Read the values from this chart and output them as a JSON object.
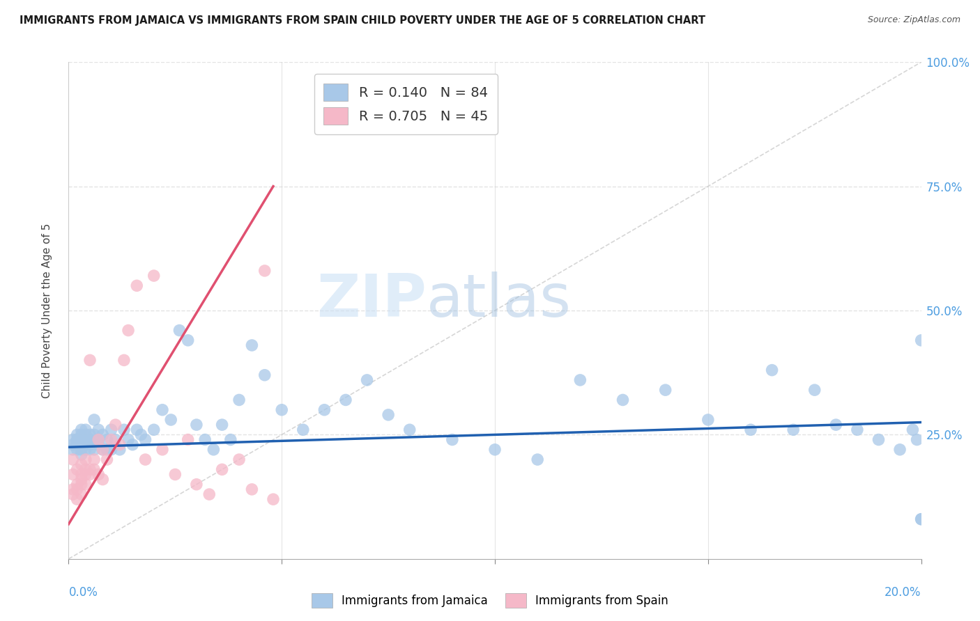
{
  "title": "IMMIGRANTS FROM JAMAICA VS IMMIGRANTS FROM SPAIN CHILD POVERTY UNDER THE AGE OF 5 CORRELATION CHART",
  "source": "Source: ZipAtlas.com",
  "ylabel": "Child Poverty Under the Age of 5",
  "ylabel_right_ticks": [
    "100.0%",
    "75.0%",
    "50.0%",
    "25.0%"
  ],
  "ylabel_right_vals": [
    1.0,
    0.75,
    0.5,
    0.25
  ],
  "r_jamaica": 0.14,
  "n_jamaica": 84,
  "r_spain": 0.705,
  "n_spain": 45,
  "jamaica_color": "#a8c8e8",
  "spain_color": "#f5b8c8",
  "jamaica_line_color": "#2060b0",
  "spain_line_color": "#e05070",
  "diag_line_color": "#cccccc",
  "xmin": 0.0,
  "xmax": 0.2,
  "ymin": 0.0,
  "ymax": 1.0,
  "watermark_zip": "ZIP",
  "watermark_atlas": "atlas",
  "background_color": "#ffffff",
  "grid_color": "#e0e0e0",
  "axis_tick_color": "#4d9de0",
  "jamaica_x": [
    0.001,
    0.001,
    0.001,
    0.002,
    0.002,
    0.002,
    0.002,
    0.002,
    0.003,
    0.003,
    0.003,
    0.003,
    0.003,
    0.003,
    0.004,
    0.004,
    0.004,
    0.004,
    0.004,
    0.005,
    0.005,
    0.005,
    0.005,
    0.005,
    0.006,
    0.006,
    0.006,
    0.007,
    0.007,
    0.007,
    0.008,
    0.008,
    0.009,
    0.009,
    0.01,
    0.01,
    0.011,
    0.012,
    0.013,
    0.014,
    0.015,
    0.016,
    0.017,
    0.018,
    0.02,
    0.022,
    0.024,
    0.026,
    0.028,
    0.03,
    0.032,
    0.034,
    0.036,
    0.038,
    0.04,
    0.043,
    0.046,
    0.05,
    0.055,
    0.06,
    0.065,
    0.07,
    0.075,
    0.08,
    0.09,
    0.1,
    0.11,
    0.12,
    0.13,
    0.14,
    0.15,
    0.16,
    0.165,
    0.17,
    0.175,
    0.18,
    0.185,
    0.19,
    0.195,
    0.198,
    0.199,
    0.2,
    0.2,
    0.2
  ],
  "jamaica_y": [
    0.22,
    0.24,
    0.23,
    0.24,
    0.23,
    0.25,
    0.22,
    0.24,
    0.23,
    0.22,
    0.25,
    0.21,
    0.26,
    0.24,
    0.24,
    0.23,
    0.26,
    0.22,
    0.25,
    0.24,
    0.23,
    0.25,
    0.22,
    0.24,
    0.25,
    0.22,
    0.28,
    0.24,
    0.23,
    0.26,
    0.22,
    0.25,
    0.24,
    0.22,
    0.26,
    0.22,
    0.24,
    0.22,
    0.26,
    0.24,
    0.23,
    0.26,
    0.25,
    0.24,
    0.26,
    0.3,
    0.28,
    0.46,
    0.44,
    0.27,
    0.24,
    0.22,
    0.27,
    0.24,
    0.32,
    0.43,
    0.37,
    0.3,
    0.26,
    0.3,
    0.32,
    0.36,
    0.29,
    0.26,
    0.24,
    0.22,
    0.2,
    0.36,
    0.32,
    0.34,
    0.28,
    0.26,
    0.38,
    0.26,
    0.34,
    0.27,
    0.26,
    0.24,
    0.22,
    0.26,
    0.24,
    0.44,
    0.08,
    0.08
  ],
  "spain_x": [
    0.001,
    0.001,
    0.001,
    0.001,
    0.002,
    0.002,
    0.002,
    0.002,
    0.003,
    0.003,
    0.003,
    0.003,
    0.003,
    0.004,
    0.004,
    0.004,
    0.004,
    0.005,
    0.005,
    0.005,
    0.006,
    0.006,
    0.007,
    0.007,
    0.008,
    0.008,
    0.009,
    0.01,
    0.011,
    0.012,
    0.013,
    0.014,
    0.016,
    0.018,
    0.02,
    0.022,
    0.025,
    0.028,
    0.03,
    0.033,
    0.036,
    0.04,
    0.043,
    0.046,
    0.048
  ],
  "spain_y": [
    0.2,
    0.17,
    0.14,
    0.13,
    0.18,
    0.15,
    0.14,
    0.12,
    0.17,
    0.16,
    0.15,
    0.19,
    0.13,
    0.18,
    0.2,
    0.15,
    0.17,
    0.4,
    0.18,
    0.17,
    0.2,
    0.18,
    0.17,
    0.24,
    0.16,
    0.22,
    0.2,
    0.24,
    0.27,
    0.23,
    0.4,
    0.46,
    0.55,
    0.2,
    0.57,
    0.22,
    0.17,
    0.24,
    0.15,
    0.13,
    0.18,
    0.2,
    0.14,
    0.58,
    0.12
  ],
  "spain_line_x0": 0.0,
  "spain_line_y0": 0.07,
  "spain_line_x1": 0.048,
  "spain_line_y1": 0.75,
  "jamaica_line_x0": 0.0,
  "jamaica_line_y0": 0.225,
  "jamaica_line_x1": 0.2,
  "jamaica_line_y1": 0.275
}
